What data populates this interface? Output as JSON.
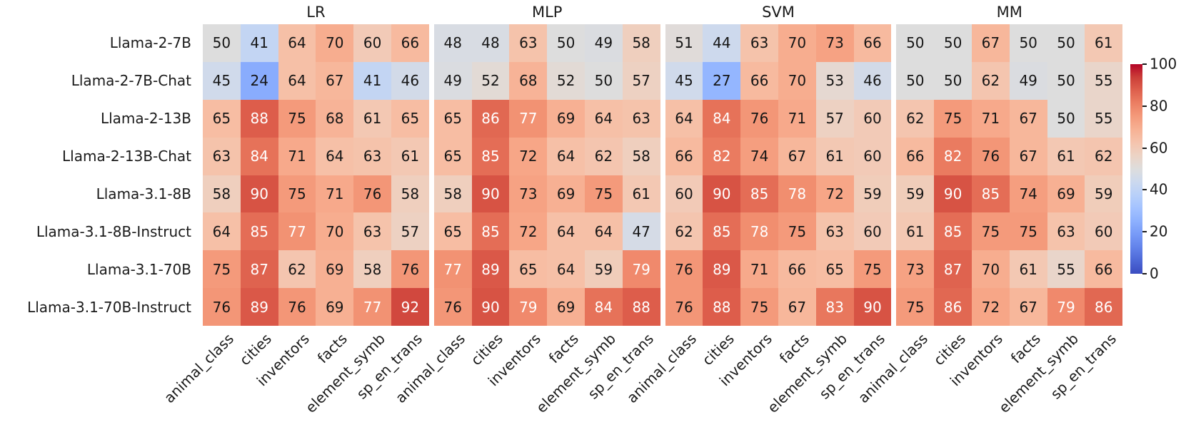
{
  "chart_data": {
    "type": "heatmap",
    "rows": [
      "Llama-2-7B",
      "Llama-2-7B-Chat",
      "Llama-2-13B",
      "Llama-2-13B-Chat",
      "Llama-3.1-8B",
      "Llama-3.1-8B-Instruct",
      "Llama-3.1-70B",
      "Llama-3.1-70B-Instruct"
    ],
    "columns": [
      "animal_class",
      "cities",
      "inventors",
      "facts",
      "element_symb",
      "sp_en_trans"
    ],
    "panels": [
      {
        "title": "LR",
        "values": [
          [
            50,
            41,
            64,
            70,
            60,
            66
          ],
          [
            45,
            24,
            64,
            67,
            41,
            46
          ],
          [
            65,
            88,
            75,
            68,
            61,
            65
          ],
          [
            63,
            84,
            71,
            64,
            63,
            61
          ],
          [
            58,
            90,
            75,
            71,
            76,
            58
          ],
          [
            64,
            85,
            77,
            70,
            63,
            57
          ],
          [
            75,
            87,
            62,
            69,
            58,
            76
          ],
          [
            76,
            89,
            76,
            69,
            77,
            92
          ]
        ]
      },
      {
        "title": "MLP",
        "values": [
          [
            48,
            48,
            63,
            50,
            49,
            58
          ],
          [
            49,
            52,
            68,
            52,
            50,
            57
          ],
          [
            65,
            86,
            77,
            69,
            64,
            63
          ],
          [
            65,
            85,
            72,
            64,
            62,
            58
          ],
          [
            58,
            90,
            73,
            69,
            75,
            61
          ],
          [
            65,
            85,
            72,
            64,
            64,
            47
          ],
          [
            77,
            89,
            65,
            64,
            59,
            79
          ],
          [
            76,
            90,
            79,
            69,
            84,
            88
          ]
        ]
      },
      {
        "title": "SVM",
        "values": [
          [
            51,
            44,
            63,
            70,
            73,
            66
          ],
          [
            45,
            27,
            66,
            70,
            53,
            46
          ],
          [
            64,
            84,
            76,
            71,
            57,
            60
          ],
          [
            66,
            82,
            74,
            67,
            61,
            60
          ],
          [
            60,
            90,
            85,
            78,
            72,
            59
          ],
          [
            62,
            85,
            78,
            75,
            63,
            60
          ],
          [
            76,
            89,
            71,
            66,
            65,
            75
          ],
          [
            76,
            88,
            75,
            67,
            83,
            90
          ]
        ]
      },
      {
        "title": "MM",
        "values": [
          [
            50,
            50,
            67,
            50,
            50,
            61
          ],
          [
            50,
            50,
            62,
            49,
            50,
            55
          ],
          [
            62,
            75,
            71,
            67,
            50,
            55
          ],
          [
            66,
            82,
            76,
            67,
            61,
            62
          ],
          [
            59,
            90,
            85,
            74,
            69,
            59
          ],
          [
            61,
            85,
            75,
            75,
            63,
            60
          ],
          [
            73,
            87,
            70,
            61,
            55,
            66
          ],
          [
            75,
            86,
            72,
            67,
            79,
            86
          ]
        ]
      }
    ],
    "colorbar": {
      "min": 0,
      "max": 100,
      "ticks": [
        0,
        20,
        40,
        60,
        80,
        100
      ]
    },
    "colormap": "coolwarm",
    "colors": {
      "low": "#3b4cc0",
      "mid": "#dddddd",
      "high": "#b40426",
      "annotation_dark": "#151515",
      "annotation_light": "#ffffff",
      "background": "#ffffff"
    },
    "layout_hints": {
      "grid": false,
      "legend": "colorbar-right",
      "x_tick_rotation": 45
    }
  }
}
